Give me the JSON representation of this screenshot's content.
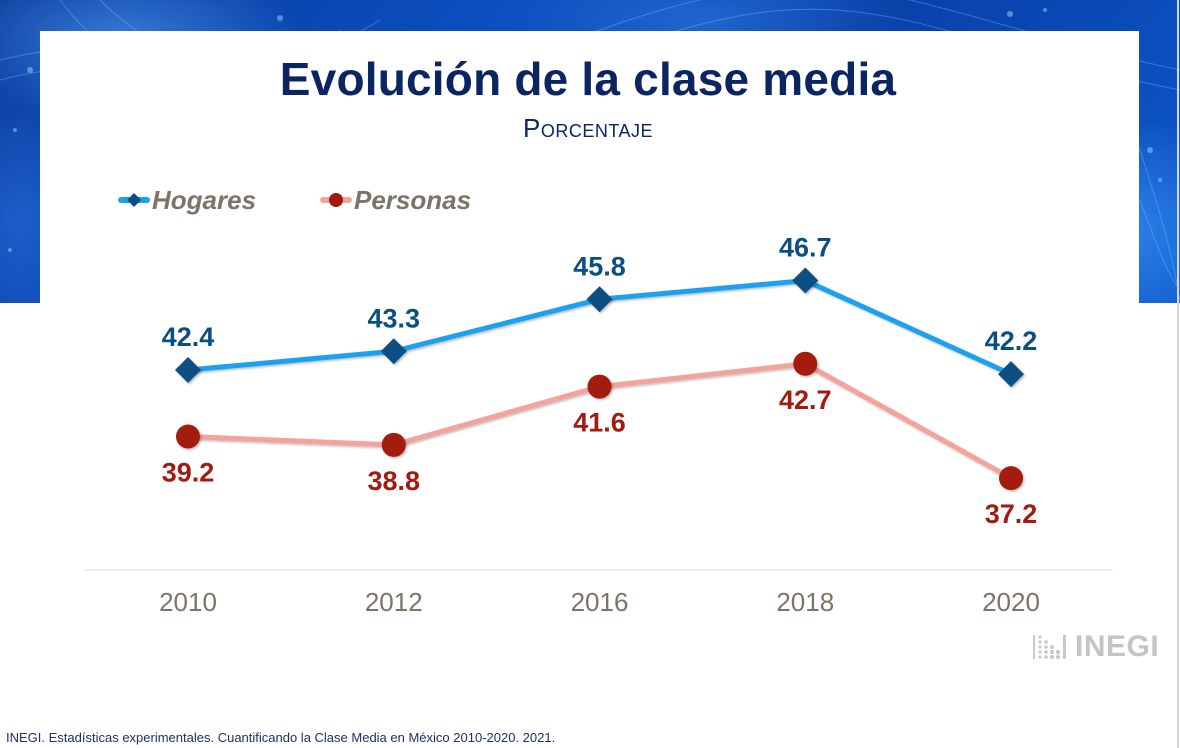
{
  "slide": {
    "title": "Evolución de la clase media",
    "subtitle": "Porcentaje",
    "source": "INEGI. Estadísticas experimentales. Cuantificando la Clase Media en México 2010-2020. 2021.",
    "logo_text": "INEGI"
  },
  "colors": {
    "title": "#0b2462",
    "hogares_line": "#1ea0f0",
    "hogares_marker": "#0b4f82",
    "personas_line": "#f4a39a",
    "personas_marker": "#a31a10",
    "axis_label": "#7d7466"
  },
  "chart_data": {
    "type": "line",
    "title": "Evolución de la clase media",
    "subtitle": "Porcentaje",
    "xlabel": "",
    "ylabel": "",
    "categories": [
      "2010",
      "2012",
      "2016",
      "2018",
      "2020"
    ],
    "series": [
      {
        "name": "Hogares",
        "marker": "diamond",
        "label_position": "above",
        "values": [
          42.4,
          43.3,
          45.8,
          46.7,
          42.2
        ]
      },
      {
        "name": "Personas",
        "marker": "circle",
        "label_position": "below",
        "values": [
          39.2,
          38.8,
          41.6,
          42.7,
          37.2
        ]
      }
    ],
    "value_labels": {
      "Hogares": [
        "42.4",
        "43.3",
        "45.8",
        "46.7",
        "42.2"
      ],
      "Personas": [
        "39.2",
        "38.8",
        "41.6",
        "42.7",
        "37.2"
      ]
    },
    "legend": {
      "placement": "top-left",
      "entries": [
        "Hogares",
        "Personas"
      ]
    },
    "grid": false,
    "y_axis_visible": false
  }
}
